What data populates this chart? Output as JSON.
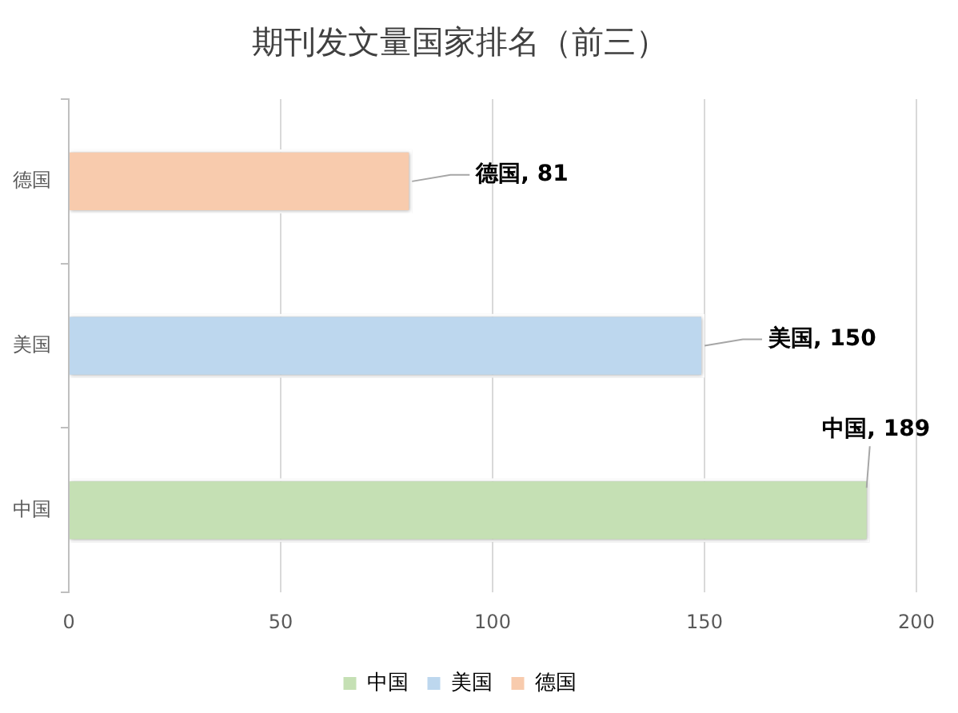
{
  "chart_data": {
    "type": "bar",
    "orientation": "horizontal",
    "title": "期刊发文量国家排名（前三）",
    "categories": [
      "德国",
      "美国",
      "中国"
    ],
    "series": [
      {
        "name": "中国",
        "color": "#c5e0b4",
        "values": [
          null,
          null,
          189
        ],
        "value_labels": [
          null,
          null,
          "中国, 189"
        ]
      },
      {
        "name": "美国",
        "color": "#bdd7ee",
        "values": [
          null,
          150,
          null
        ],
        "value_labels": [
          null,
          "美国, 150",
          null
        ]
      },
      {
        "name": "德国",
        "color": "#f8cbad",
        "values": [
          81,
          null,
          null
        ],
        "value_labels": [
          "德国, 81",
          null,
          null
        ]
      }
    ],
    "xlim": [
      0,
      200
    ],
    "xticks": [
      0,
      50,
      100,
      150,
      200
    ],
    "grid": "x",
    "legend": "bottom"
  }
}
